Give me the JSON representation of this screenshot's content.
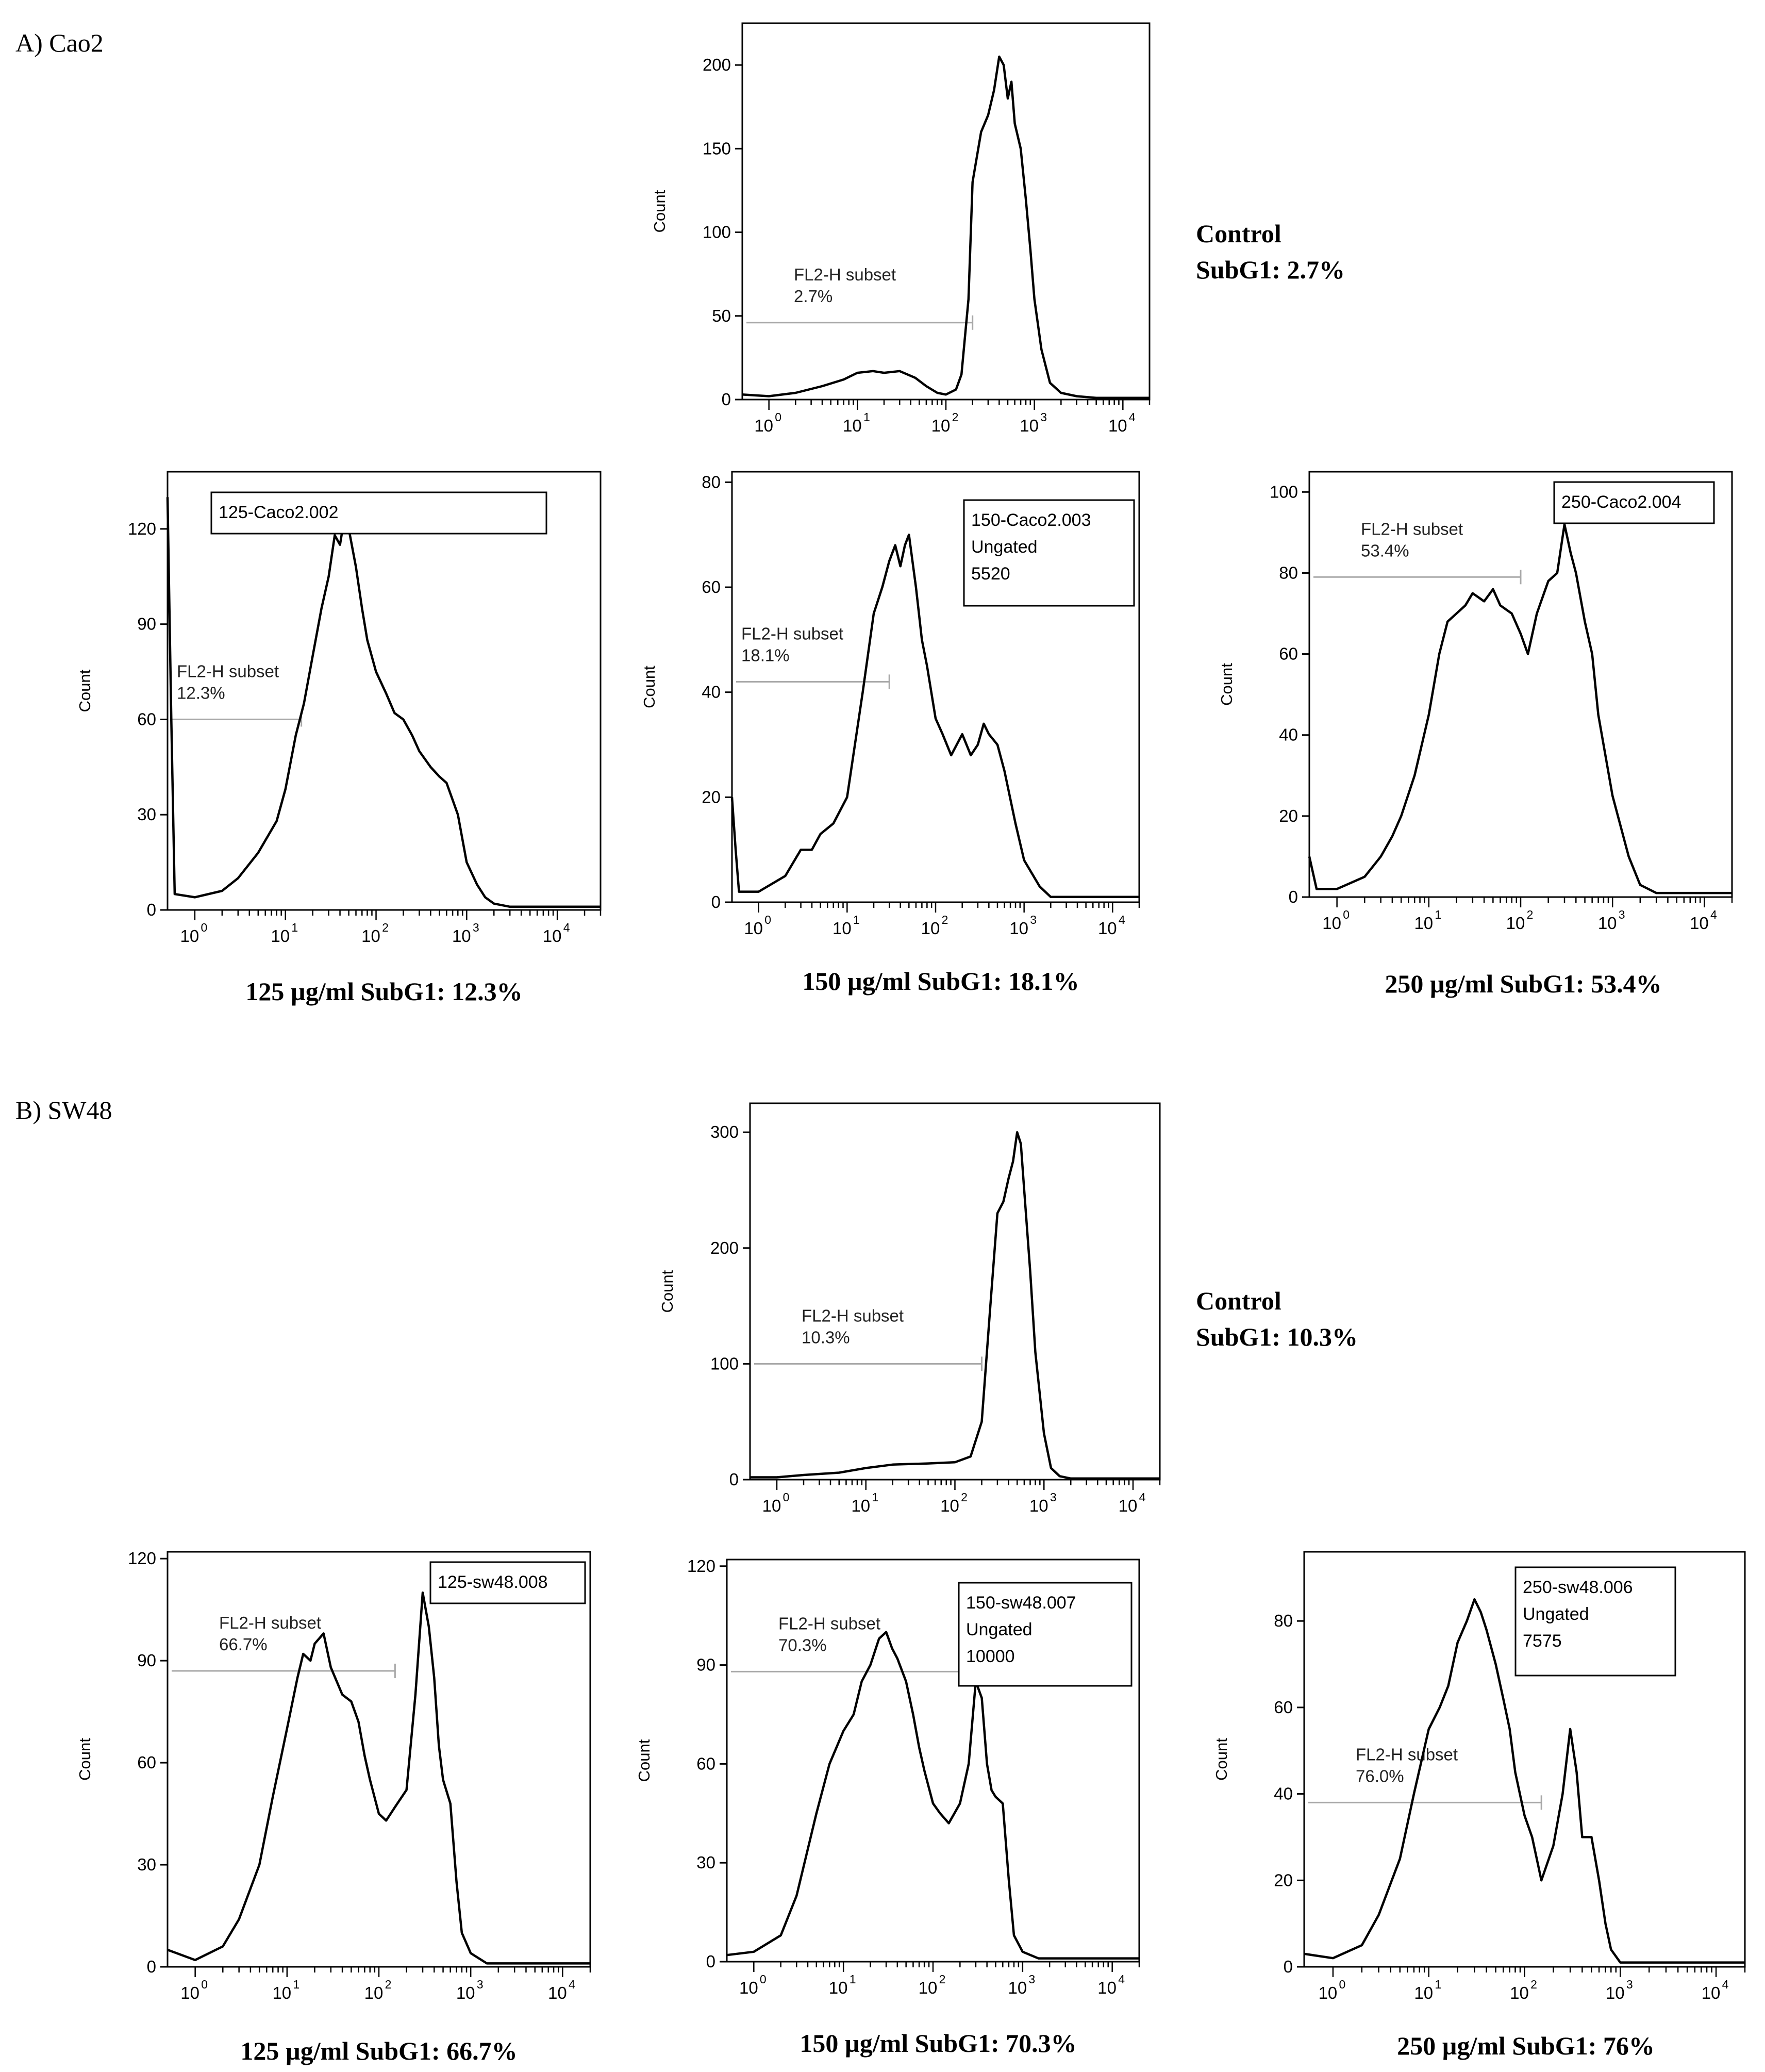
{
  "sections": [
    {
      "id": "A",
      "label": "A) Cao2"
    },
    {
      "id": "B",
      "label": "B) SW48"
    }
  ],
  "y_axis_title": "Count",
  "x_tick_base": "10",
  "x_tick_exponents": [
    "0",
    "1",
    "2",
    "3",
    "4"
  ],
  "colors": {
    "trace": "#000000",
    "gate": "#a8a8a8",
    "frame": "#000000"
  },
  "chart_data": [
    {
      "id": "A-control",
      "section": "A",
      "type": "line",
      "title": "Control",
      "x_scale": "log",
      "xlim": [
        0.5,
        20000
      ],
      "ylim": [
        0,
        225
      ],
      "yticks": [
        "0",
        "50",
        "100",
        "150",
        "200"
      ],
      "ylabel": "Count",
      "gate": {
        "label": "FL2-H subset",
        "pct": "2.7%",
        "y": 46,
        "x_end": 200
      },
      "box": [],
      "caption_lines": [
        "Control",
        "SubG1: 2.7%"
      ],
      "x": [
        0.5,
        1,
        2,
        4,
        7,
        10,
        15,
        20,
        30,
        45,
        60,
        80,
        100,
        130,
        150,
        180,
        200,
        250,
        300,
        350,
        400,
        450,
        500,
        550,
        600,
        700,
        800,
        900,
        1000,
        1200,
        1500,
        2000,
        3000,
        5000,
        10000,
        20000
      ],
      "y": [
        3,
        2,
        4,
        8,
        12,
        16,
        17,
        16,
        17,
        13,
        8,
        4,
        3,
        6,
        15,
        60,
        130,
        160,
        170,
        185,
        205,
        200,
        180,
        190,
        165,
        150,
        120,
        90,
        60,
        30,
        10,
        4,
        2,
        1,
        1,
        1
      ]
    },
    {
      "id": "A-125",
      "section": "A",
      "type": "line",
      "title": "125 µg/ml",
      "x_scale": "log",
      "xlim": [
        0.5,
        30000
      ],
      "ylim": [
        0,
        138
      ],
      "yticks": [
        "0",
        "30",
        "60",
        "90",
        "120"
      ],
      "ylabel": "Count",
      "gate": {
        "label": "FL2-H subset",
        "pct": "12.3%",
        "y": 60,
        "x_end": 15
      },
      "box": [
        "125-Caco2.002"
      ],
      "caption_lines": [
        "125 µg/ml  SubG1: 12.3%"
      ],
      "x": [
        0.5,
        0.55,
        0.6,
        1,
        2,
        3,
        5,
        8,
        10,
        13,
        16,
        20,
        25,
        30,
        35,
        40,
        45,
        50,
        60,
        70,
        80,
        100,
        130,
        160,
        200,
        250,
        300,
        400,
        500,
        600,
        800,
        1000,
        1300,
        1600,
        2000,
        3000,
        4000,
        10000,
        30000
      ],
      "y": [
        130,
        60,
        5,
        4,
        6,
        10,
        18,
        28,
        38,
        55,
        65,
        80,
        95,
        105,
        118,
        115,
        124,
        120,
        108,
        95,
        85,
        75,
        68,
        62,
        60,
        55,
        50,
        45,
        42,
        40,
        30,
        15,
        8,
        4,
        2,
        1,
        1,
        1,
        1
      ]
    },
    {
      "id": "A-150",
      "section": "A",
      "type": "line",
      "title": "150 µg/ml",
      "x_scale": "log",
      "xlim": [
        0.5,
        20000
      ],
      "ylim": [
        0,
        82
      ],
      "yticks": [
        "0",
        "20",
        "40",
        "60",
        "80"
      ],
      "ylabel": "Count",
      "gate": {
        "label": "FL2-H subset",
        "pct": "18.1%",
        "y": 42,
        "x_end": 30
      },
      "box": [
        "150-Caco2.003",
        "Ungated",
        "5520"
      ],
      "caption_lines": [
        "150 µg/ml  SubG1: 18.1%"
      ],
      "x": [
        0.5,
        0.55,
        0.6,
        1,
        2,
        3,
        4,
        5,
        7,
        10,
        15,
        20,
        25,
        30,
        35,
        40,
        45,
        50,
        60,
        70,
        80,
        100,
        120,
        150,
        200,
        250,
        300,
        350,
        400,
        500,
        600,
        800,
        1000,
        1500,
        2000,
        5000,
        20000
      ],
      "y": [
        20,
        10,
        2,
        2,
        5,
        10,
        10,
        13,
        15,
        20,
        40,
        55,
        60,
        65,
        68,
        64,
        68,
        70,
        60,
        50,
        45,
        35,
        32,
        28,
        32,
        28,
        30,
        34,
        32,
        30,
        25,
        15,
        8,
        3,
        1,
        1,
        1
      ]
    },
    {
      "id": "A-250",
      "section": "A",
      "type": "line",
      "title": "250 µg/ml",
      "x_scale": "log",
      "xlim": [
        0.5,
        20000
      ],
      "ylim": [
        0,
        105
      ],
      "yticks": [
        "0",
        "20",
        "40",
        "60",
        "80",
        "100"
      ],
      "ylabel": "Count",
      "gate": {
        "label": "FL2-H subset",
        "pct": "53.4%",
        "y": 79,
        "x_end": 100
      },
      "box": [
        "250-Caco2.004"
      ],
      "caption_lines": [
        "250 µg/ml   SubG1: 53.4%"
      ],
      "x": [
        0.5,
        0.6,
        1,
        2,
        3,
        4,
        5,
        7,
        10,
        13,
        16,
        20,
        25,
        30,
        40,
        50,
        60,
        80,
        100,
        120,
        150,
        200,
        250,
        300,
        350,
        400,
        500,
        600,
        700,
        1000,
        1500,
        2000,
        3000,
        5000,
        20000
      ],
      "y": [
        10,
        2,
        2,
        5,
        10,
        15,
        20,
        30,
        45,
        60,
        68,
        70,
        72,
        75,
        73,
        76,
        72,
        70,
        65,
        60,
        70,
        78,
        80,
        92,
        85,
        80,
        68,
        60,
        45,
        25,
        10,
        3,
        1,
        1,
        1
      ]
    },
    {
      "id": "B-control",
      "section": "B",
      "type": "line",
      "title": "Control",
      "x_scale": "log",
      "xlim": [
        0.5,
        20000
      ],
      "ylim": [
        0,
        325
      ],
      "yticks": [
        "0",
        "100",
        "200",
        "300"
      ],
      "ylabel": "Count",
      "gate": {
        "label": "FL2-H subset",
        "pct": "10.3%",
        "y": 100,
        "x_end": 200
      },
      "box": [],
      "caption_lines": [
        "Control",
        "SubG1: 10.3%"
      ],
      "x": [
        0.5,
        1,
        2,
        5,
        10,
        20,
        50,
        100,
        150,
        200,
        250,
        300,
        350,
        400,
        450,
        500,
        550,
        600,
        700,
        800,
        1000,
        1200,
        1500,
        2000,
        5000,
        20000
      ],
      "y": [
        2,
        2,
        4,
        6,
        10,
        13,
        14,
        15,
        20,
        50,
        150,
        230,
        240,
        260,
        275,
        300,
        290,
        250,
        180,
        110,
        40,
        10,
        3,
        1,
        1,
        1
      ]
    },
    {
      "id": "B-125",
      "section": "B",
      "type": "line",
      "title": "125 µg/ml",
      "x_scale": "log",
      "xlim": [
        0.5,
        20000
      ],
      "ylim": [
        0,
        122
      ],
      "yticks": [
        "0",
        "30",
        "60",
        "90",
        "120"
      ],
      "ylabel": "Count",
      "gate": {
        "label": "FL2-H subset",
        "pct": "66.7%",
        "y": 87,
        "x_end": 150
      },
      "box": [
        "125-sw48.008"
      ],
      "caption_lines": [
        "125 µg/ml   SubG1: 66.7%"
      ],
      "x": [
        0.5,
        1,
        2,
        3,
        5,
        7,
        10,
        13,
        15,
        18,
        20,
        25,
        30,
        40,
        50,
        60,
        70,
        80,
        100,
        120,
        150,
        200,
        250,
        300,
        350,
        400,
        450,
        500,
        600,
        700,
        800,
        1000,
        1500,
        2000,
        5000,
        20000
      ],
      "y": [
        5,
        2,
        6,
        14,
        30,
        50,
        70,
        85,
        92,
        90,
        95,
        98,
        88,
        80,
        78,
        72,
        62,
        55,
        45,
        43,
        47,
        52,
        80,
        110,
        100,
        85,
        65,
        55,
        48,
        25,
        10,
        4,
        1,
        1,
        1,
        1
      ]
    },
    {
      "id": "B-150",
      "section": "B",
      "type": "line",
      "title": "150 µg/ml",
      "x_scale": "log",
      "xlim": [
        0.5,
        20000
      ],
      "ylim": [
        0,
        122
      ],
      "yticks": [
        "0",
        "30",
        "60",
        "90",
        "120"
      ],
      "ylabel": "Count",
      "gate": {
        "label": "FL2-H subset",
        "pct": "70.3%",
        "y": 88,
        "x_end": 300
      },
      "box": [
        "150-sw48.007",
        "Ungated",
        "10000"
      ],
      "caption_lines": [
        "150 µg/ml   SubG1: 70.3%"
      ],
      "x": [
        0.5,
        1,
        2,
        3,
        5,
        7,
        10,
        13,
        16,
        20,
        25,
        30,
        35,
        40,
        50,
        60,
        70,
        80,
        100,
        120,
        150,
        200,
        250,
        300,
        350,
        400,
        450,
        500,
        600,
        700,
        800,
        1000,
        1500,
        2000,
        5000,
        20000
      ],
      "y": [
        2,
        3,
        8,
        20,
        45,
        60,
        70,
        75,
        85,
        90,
        98,
        100,
        95,
        92,
        85,
        75,
        65,
        58,
        48,
        45,
        42,
        48,
        60,
        85,
        80,
        60,
        52,
        50,
        48,
        25,
        8,
        3,
        1,
        1,
        1,
        1
      ]
    },
    {
      "id": "B-250",
      "section": "B",
      "type": "line",
      "title": "250 µg/ml",
      "x_scale": "log",
      "xlim": [
        0.5,
        20000
      ],
      "ylim": [
        0,
        96
      ],
      "yticks": [
        "0",
        "20",
        "40",
        "60",
        "80"
      ],
      "ylabel": "Count",
      "gate": {
        "label": "FL2-H subset",
        "pct": "76.0%",
        "y": 38,
        "x_end": 150
      },
      "box": [
        "250-sw48.006",
        "Ungated",
        "7575"
      ],
      "caption_lines": [
        "250 µg/ml   SubG1: 76%"
      ],
      "x": [
        0.5,
        1,
        2,
        3,
        5,
        7,
        10,
        13,
        16,
        20,
        25,
        30,
        35,
        40,
        50,
        60,
        70,
        80,
        100,
        120,
        150,
        200,
        250,
        300,
        350,
        400,
        500,
        600,
        700,
        800,
        1000,
        1500,
        2000,
        5000,
        20000
      ],
      "y": [
        3,
        2,
        5,
        12,
        25,
        40,
        55,
        60,
        65,
        75,
        80,
        85,
        82,
        78,
        70,
        62,
        55,
        45,
        35,
        30,
        20,
        28,
        40,
        55,
        45,
        30,
        30,
        20,
        10,
        4,
        1,
        1,
        1,
        1,
        1
      ]
    }
  ]
}
